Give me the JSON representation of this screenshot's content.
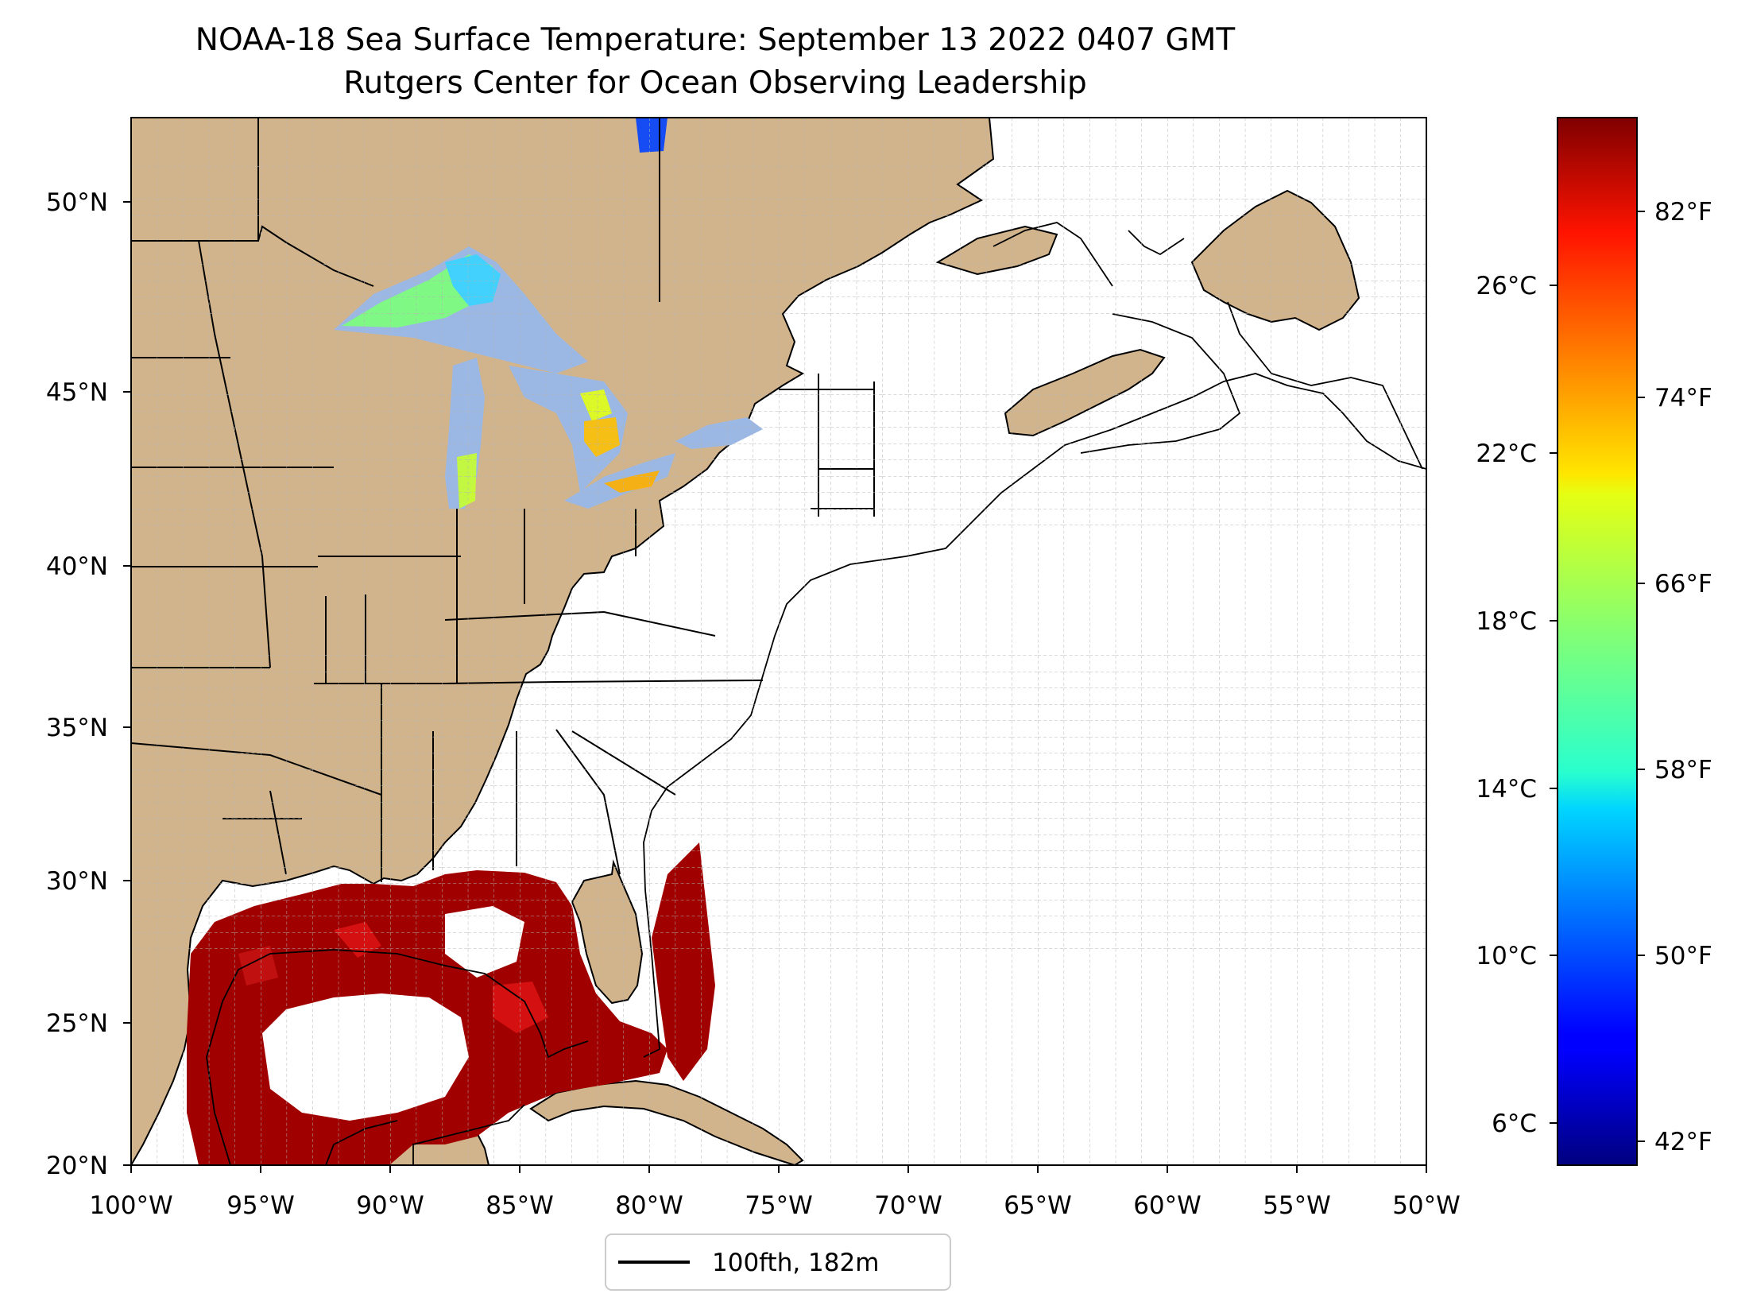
{
  "title": "NOAA-18 Sea Surface Temperature: September 13 2022 0407 GMT",
  "subtitle": "Rutgers Center for Ocean Observing Leadership",
  "map": {
    "lon_range": [
      -100,
      -50
    ],
    "lat_range": [
      20,
      52.2
    ],
    "land_color": "#d2b48c",
    "lake_color": "#9bb8e4",
    "ocean_color": "#ffffff",
    "grid": true,
    "lon_ticks": [
      "100°W",
      "95°W",
      "90°W",
      "85°W",
      "80°W",
      "75°W",
      "70°W",
      "65°W",
      "60°W",
      "55°W",
      "50°W"
    ],
    "lat_ticks": [
      "20°N",
      "25°N",
      "30°N",
      "35°N",
      "40°N",
      "45°N",
      "50°N"
    ]
  },
  "colorbar": {
    "colormap": "jet",
    "celsius_range": [
      5,
      30
    ],
    "celsius_ticks": [
      "6°C",
      "10°C",
      "14°C",
      "18°C",
      "22°C",
      "26°C"
    ],
    "fahrenheit_ticks": [
      "42°F",
      "50°F",
      "58°F",
      "66°F",
      "74°F",
      "82°F"
    ]
  },
  "legend": {
    "location": "below map",
    "entries": [
      {
        "label": "100fth, 182m",
        "color": "#000000"
      }
    ]
  }
}
